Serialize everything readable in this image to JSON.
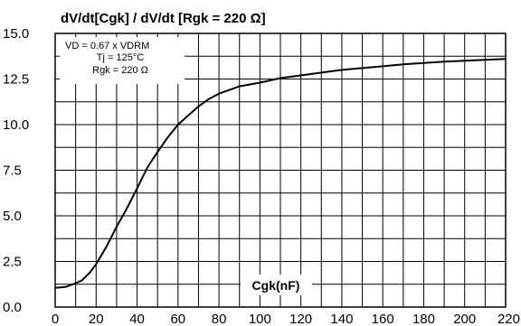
{
  "chart_data": {
    "type": "line",
    "title": "dV/dt[Cgk] / dV/dt [Rgk = 220 Ω]",
    "xlabel": "Cgk(nF)",
    "ylabel": "",
    "xlim": [
      0,
      220
    ],
    "ylim": [
      0,
      15
    ],
    "x_ticks": [
      "0",
      "20",
      "40",
      "60",
      "80",
      "100",
      "120",
      "140",
      "160",
      "180",
      "200",
      "220"
    ],
    "y_ticks": [
      "0.0",
      "2.5",
      "5.0",
      "7.5",
      "10.0",
      "12.5",
      "15.0"
    ],
    "grid": true,
    "annotation": [
      "VD = 0.67 x VDRM",
      "Tj = 125°C",
      "Rgk = 220 Ω"
    ],
    "series": [
      {
        "color": "#000000",
        "x": [
          0,
          5,
          10,
          13,
          17,
          20,
          25,
          30,
          35,
          40,
          45,
          50,
          55,
          60,
          65,
          70,
          75,
          80,
          90,
          100,
          110,
          120,
          130,
          140,
          150,
          160,
          170,
          180,
          190,
          200,
          210,
          220
        ],
        "y": [
          1.05,
          1.1,
          1.3,
          1.45,
          1.9,
          2.35,
          3.3,
          4.4,
          5.4,
          6.5,
          7.65,
          8.5,
          9.3,
          10.0,
          10.5,
          11.0,
          11.4,
          11.7,
          12.1,
          12.3,
          12.55,
          12.7,
          12.85,
          13.0,
          13.1,
          13.2,
          13.3,
          13.38,
          13.45,
          13.5,
          13.55,
          13.6
        ]
      }
    ]
  }
}
